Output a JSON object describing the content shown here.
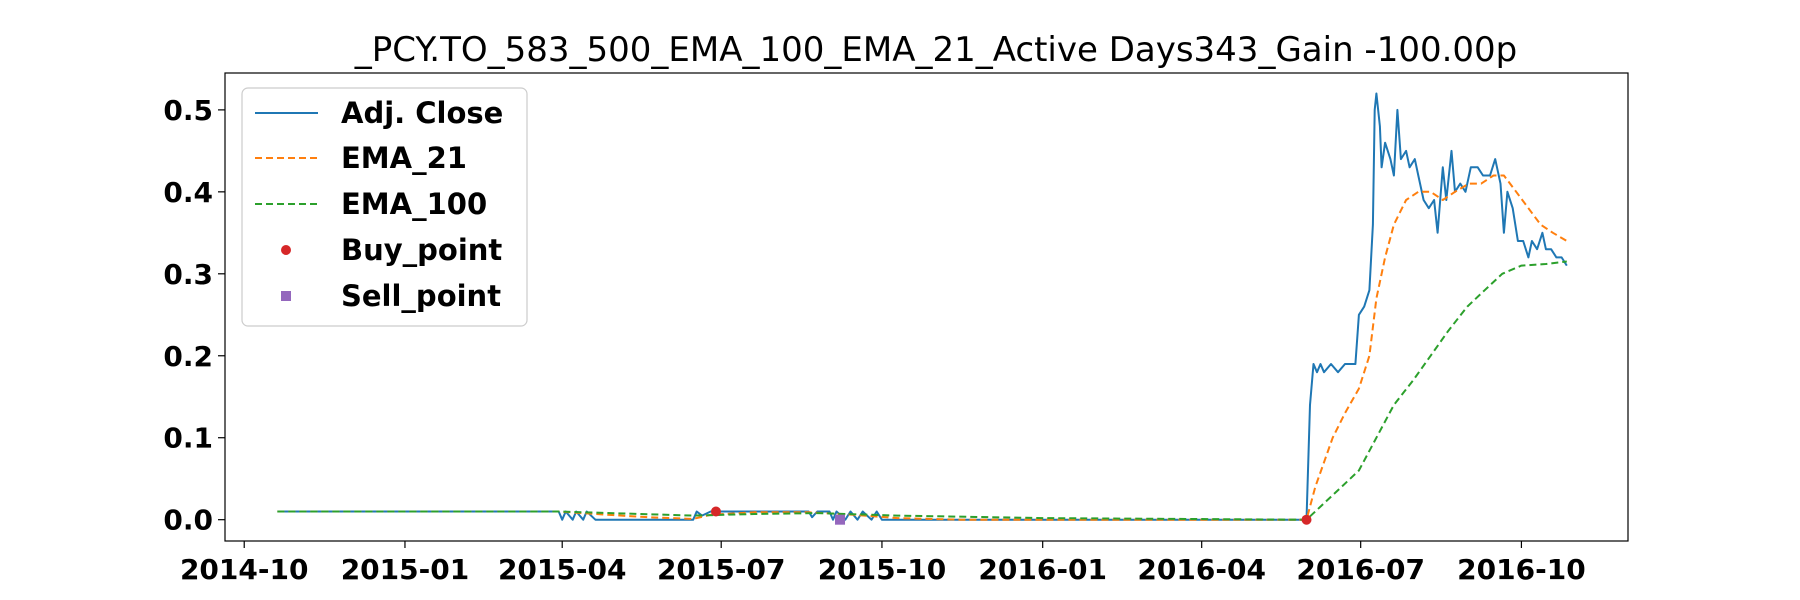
{
  "chart_data": {
    "type": "line",
    "title": "_PCY.TO_583_500_EMA_100_EMA_21_Active Days343_Gain -100.00p",
    "xlabel": "",
    "ylabel": "",
    "xlim": [
      "2014-09-20",
      "2016-12-01"
    ],
    "ylim": [
      -0.026,
      0.545
    ],
    "grid": false,
    "legend_position": "upper-left",
    "x_ticks": [
      "2014-10",
      "2015-01",
      "2015-04",
      "2015-07",
      "2015-10",
      "2016-01",
      "2016-04",
      "2016-07",
      "2016-10"
    ],
    "y_ticks": [
      "0.0",
      "0.1",
      "0.2",
      "0.3",
      "0.4",
      "0.5"
    ],
    "series": [
      {
        "name": "Adj. Close",
        "style": "solid",
        "color": "#1f77b4",
        "points": [
          [
            "2014-10-20",
            0.01
          ],
          [
            "2015-03-30",
            0.01
          ],
          [
            "2015-04-01",
            0.0
          ],
          [
            "2015-04-03",
            0.01
          ],
          [
            "2015-04-07",
            0.0
          ],
          [
            "2015-04-09",
            0.01
          ],
          [
            "2015-04-13",
            0.0
          ],
          [
            "2015-04-15",
            0.01
          ],
          [
            "2015-04-20",
            0.0
          ],
          [
            "2015-06-15",
            0.0
          ],
          [
            "2015-06-17",
            0.01
          ],
          [
            "2015-06-20",
            0.005
          ],
          [
            "2015-06-25",
            0.01
          ],
          [
            "2015-08-20",
            0.01
          ],
          [
            "2015-08-22",
            0.003
          ],
          [
            "2015-08-25",
            0.01
          ],
          [
            "2015-09-01",
            0.01
          ],
          [
            "2015-09-03",
            0.0
          ],
          [
            "2015-09-05",
            0.01
          ],
          [
            "2015-09-10",
            0.0
          ],
          [
            "2015-09-13",
            0.01
          ],
          [
            "2015-09-17",
            0.0
          ],
          [
            "2015-09-20",
            0.01
          ],
          [
            "2015-09-25",
            0.0
          ],
          [
            "2015-09-28",
            0.01
          ],
          [
            "2015-10-01",
            0.0
          ],
          [
            "2016-05-31",
            0.0
          ],
          [
            "2016-06-02",
            0.14
          ],
          [
            "2016-06-04",
            0.19
          ],
          [
            "2016-06-06",
            0.18
          ],
          [
            "2016-06-08",
            0.19
          ],
          [
            "2016-06-10",
            0.18
          ],
          [
            "2016-06-14",
            0.19
          ],
          [
            "2016-06-18",
            0.18
          ],
          [
            "2016-06-22",
            0.19
          ],
          [
            "2016-06-28",
            0.19
          ],
          [
            "2016-06-30",
            0.25
          ],
          [
            "2016-07-03",
            0.26
          ],
          [
            "2016-07-06",
            0.28
          ],
          [
            "2016-07-08",
            0.36
          ],
          [
            "2016-07-09",
            0.5
          ],
          [
            "2016-07-10",
            0.52
          ],
          [
            "2016-07-12",
            0.48
          ],
          [
            "2016-07-13",
            0.43
          ],
          [
            "2016-07-15",
            0.46
          ],
          [
            "2016-07-18",
            0.44
          ],
          [
            "2016-07-20",
            0.42
          ],
          [
            "2016-07-22",
            0.5
          ],
          [
            "2016-07-24",
            0.44
          ],
          [
            "2016-07-27",
            0.45
          ],
          [
            "2016-07-29",
            0.43
          ],
          [
            "2016-08-01",
            0.44
          ],
          [
            "2016-08-03",
            0.42
          ],
          [
            "2016-08-06",
            0.39
          ],
          [
            "2016-08-09",
            0.38
          ],
          [
            "2016-08-12",
            0.39
          ],
          [
            "2016-08-14",
            0.35
          ],
          [
            "2016-08-17",
            0.43
          ],
          [
            "2016-08-19",
            0.39
          ],
          [
            "2016-08-22",
            0.45
          ],
          [
            "2016-08-24",
            0.4
          ],
          [
            "2016-08-27",
            0.41
          ],
          [
            "2016-08-30",
            0.4
          ],
          [
            "2016-09-02",
            0.43
          ],
          [
            "2016-09-06",
            0.43
          ],
          [
            "2016-09-09",
            0.42
          ],
          [
            "2016-09-13",
            0.42
          ],
          [
            "2016-09-16",
            0.44
          ],
          [
            "2016-09-19",
            0.41
          ],
          [
            "2016-09-21",
            0.35
          ],
          [
            "2016-09-23",
            0.4
          ],
          [
            "2016-09-26",
            0.38
          ],
          [
            "2016-09-29",
            0.34
          ],
          [
            "2016-10-02",
            0.34
          ],
          [
            "2016-10-05",
            0.32
          ],
          [
            "2016-10-07",
            0.34
          ],
          [
            "2016-10-10",
            0.33
          ],
          [
            "2016-10-13",
            0.35
          ],
          [
            "2016-10-15",
            0.33
          ],
          [
            "2016-10-18",
            0.33
          ],
          [
            "2016-10-21",
            0.32
          ],
          [
            "2016-10-24",
            0.32
          ],
          [
            "2016-10-27",
            0.31
          ]
        ]
      },
      {
        "name": "EMA_21",
        "style": "dashed",
        "color": "#ff7f0e",
        "points": [
          [
            "2014-10-20",
            0.01
          ],
          [
            "2015-03-30",
            0.01
          ],
          [
            "2015-04-20",
            0.007
          ],
          [
            "2015-05-20",
            0.003
          ],
          [
            "2015-06-15",
            0.001
          ],
          [
            "2015-06-25",
            0.006
          ],
          [
            "2015-07-20",
            0.009
          ],
          [
            "2015-08-20",
            0.009
          ],
          [
            "2015-09-15",
            0.006
          ],
          [
            "2015-10-10",
            0.002
          ],
          [
            "2015-11-15",
            0.0
          ],
          [
            "2016-05-31",
            0.0
          ],
          [
            "2016-06-05",
            0.04
          ],
          [
            "2016-06-10",
            0.07
          ],
          [
            "2016-06-15",
            0.1
          ],
          [
            "2016-06-22",
            0.13
          ],
          [
            "2016-06-30",
            0.16
          ],
          [
            "2016-07-06",
            0.2
          ],
          [
            "2016-07-10",
            0.27
          ],
          [
            "2016-07-15",
            0.32
          ],
          [
            "2016-07-20",
            0.36
          ],
          [
            "2016-07-27",
            0.39
          ],
          [
            "2016-08-03",
            0.4
          ],
          [
            "2016-08-10",
            0.4
          ],
          [
            "2016-08-17",
            0.39
          ],
          [
            "2016-08-24",
            0.4
          ],
          [
            "2016-09-01",
            0.41
          ],
          [
            "2016-09-08",
            0.41
          ],
          [
            "2016-09-15",
            0.42
          ],
          [
            "2016-09-21",
            0.42
          ],
          [
            "2016-09-28",
            0.4
          ],
          [
            "2016-10-05",
            0.38
          ],
          [
            "2016-10-12",
            0.36
          ],
          [
            "2016-10-19",
            0.35
          ],
          [
            "2016-10-27",
            0.34
          ]
        ]
      },
      {
        "name": "EMA_100",
        "style": "dashed",
        "color": "#2ca02c",
        "points": [
          [
            "2014-10-20",
            0.01
          ],
          [
            "2015-03-30",
            0.01
          ],
          [
            "2015-06-15",
            0.005
          ],
          [
            "2015-07-20",
            0.007
          ],
          [
            "2015-08-25",
            0.008
          ],
          [
            "2015-10-10",
            0.005
          ],
          [
            "2016-01-01",
            0.002
          ],
          [
            "2016-05-31",
            0.0
          ],
          [
            "2016-06-10",
            0.02
          ],
          [
            "2016-06-20",
            0.04
          ],
          [
            "2016-06-30",
            0.06
          ],
          [
            "2016-07-10",
            0.1
          ],
          [
            "2016-07-20",
            0.14
          ],
          [
            "2016-07-31",
            0.17
          ],
          [
            "2016-08-10",
            0.2
          ],
          [
            "2016-08-20",
            0.23
          ],
          [
            "2016-08-31",
            0.26
          ],
          [
            "2016-09-10",
            0.28
          ],
          [
            "2016-09-20",
            0.3
          ],
          [
            "2016-10-01",
            0.31
          ],
          [
            "2016-10-15",
            0.312
          ],
          [
            "2016-10-27",
            0.315
          ]
        ]
      }
    ],
    "markers": [
      {
        "name": "Buy_point",
        "shape": "circle",
        "color": "#d62728",
        "points": [
          [
            "2015-06-28",
            0.01
          ],
          [
            "2016-05-31",
            0.0
          ]
        ]
      },
      {
        "name": "Sell_point",
        "shape": "square",
        "color": "#9467bd",
        "points": [
          [
            "2015-09-07",
            0.0
          ]
        ]
      }
    ],
    "legend": [
      "Adj. Close",
      "EMA_21",
      "EMA_100",
      "Buy_point",
      "Sell_point"
    ]
  }
}
